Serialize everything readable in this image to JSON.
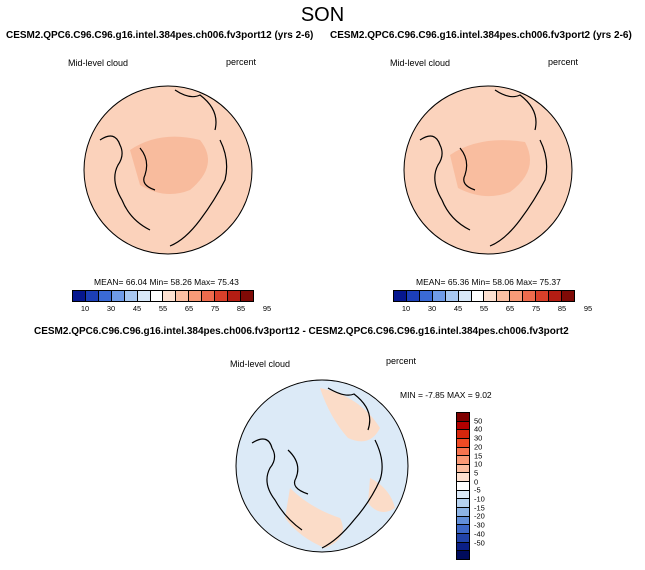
{
  "season": "SON",
  "panels": [
    {
      "title": "CESM2.QPC6.C96.C96.g16.intel.384pes.ch006.fv3port12 (yrs 2-6)",
      "variable": "Mid-level cloud",
      "units": "percent",
      "stats": "MEAN= 66.04  Min= 58.26  Max= 75.43",
      "fill": "#fbd2bb"
    },
    {
      "title": "CESM2.QPC6.C96.C96.g16.intel.384pes.ch006.fv3port2 (yrs 2-6)",
      "variable": "Mid-level cloud",
      "units": "percent",
      "stats": "MEAN= 65.36  Min= 58.06  Max= 75.37",
      "fill": "#fbd3bd"
    }
  ],
  "diff": {
    "title": "CESM2.QPC6.C96.C96.g16.intel.384pes.ch006.fv3port12 - CESM2.QPC6.C96.C96.g16.intel.384pes.ch006.fv3port2",
    "variable": "Mid-level cloud",
    "units": "percent",
    "stats": "MIN = -7.85 MAX =  9.02",
    "fill": "#dceaf7"
  },
  "colorbar_abs": {
    "colors": [
      "#06178f",
      "#1c3fb8",
      "#3a6ad6",
      "#6f9be8",
      "#a8c8f2",
      "#d8e8f8",
      "#ffffff",
      "#fde0d0",
      "#fbbfa3",
      "#f79a78",
      "#ee6b4d",
      "#d9402a",
      "#b31d13",
      "#7f0a06"
    ],
    "ticks": [
      "10",
      "30",
      "45",
      "55",
      "65",
      "75",
      "85",
      "95"
    ]
  },
  "colorbar_diff": {
    "colors": [
      "#7f0000",
      "#b30000",
      "#d7260d",
      "#ef4a24",
      "#f7744f",
      "#fa9a76",
      "#fbbea0",
      "#fde0cf",
      "#ffffff",
      "#dce9f7",
      "#b6d2f0",
      "#8db4e6",
      "#628fd9",
      "#3d68c7",
      "#2143a8",
      "#0b1f86",
      "#000b5c"
    ],
    "ticks": [
      "50",
      "40",
      "30",
      "20",
      "15",
      "10",
      "5",
      "0",
      "-5",
      "-10",
      "-15",
      "-20",
      "-30",
      "-40",
      "-50"
    ]
  }
}
